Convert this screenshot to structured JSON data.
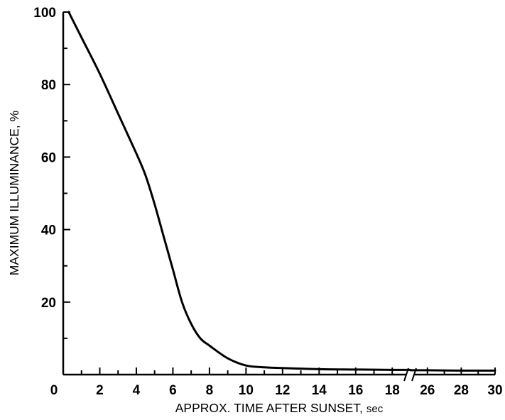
{
  "chart_data": {
    "type": "line",
    "title": "",
    "xlabel": "APPROX. TIME AFTER SUNSET,",
    "xlabel_unit": "sec",
    "ylabel": "MAXIMUM ILLUMINANCE, %",
    "xlim": [
      0,
      30
    ],
    "ylim": [
      0,
      100
    ],
    "axis_break": {
      "after": 19,
      "resume": 25
    },
    "x_ticks_left": [
      "0",
      "2",
      "4",
      "6",
      "8",
      "10",
      "12",
      "14",
      "16",
      "18"
    ],
    "x_ticks_right": [
      "26",
      "28",
      "30"
    ],
    "y_ticks": [
      "20",
      "40",
      "60",
      "80",
      "100"
    ],
    "grid": false,
    "legend": "none",
    "series": [
      {
        "x": [
          0.3,
          1,
          2,
          3,
          4,
          4.5,
          5,
          5.5,
          6,
          6.5,
          7,
          7.5,
          8,
          9,
          10,
          11,
          12,
          14,
          16,
          18,
          19
        ],
        "y": [
          100,
          93,
          83,
          72,
          61,
          55,
          47,
          38,
          29,
          20,
          14,
          10,
          8,
          4.5,
          2.5,
          2,
          1.8,
          1.5,
          1.4,
          1.3,
          1.3
        ]
      },
      {
        "x": [
          25,
          26,
          28,
          30
        ],
        "y": [
          1.2,
          1.2,
          1.1,
          1.1
        ]
      }
    ],
    "colors": {
      "line": "#000000",
      "axis": "#000000"
    }
  }
}
